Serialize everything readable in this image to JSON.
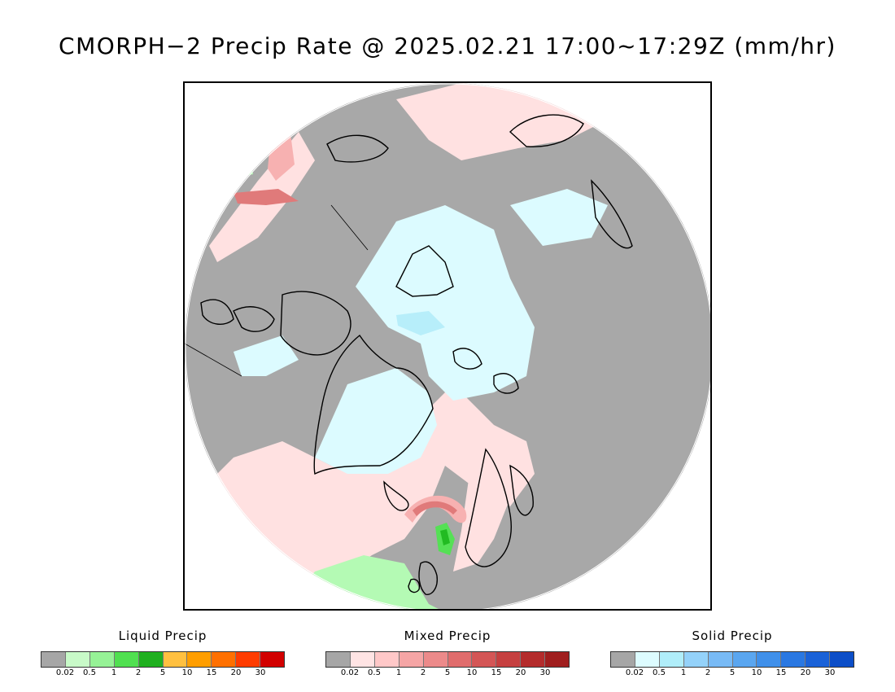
{
  "title": "CMORPH−2 Precip Rate @ 2025.02.21 17:00~17:29Z (mm/hr)",
  "map": {
    "colors": {
      "no_precip": "#a8a8a8",
      "mixed_light": "#ffe1e1",
      "mixed_mid": "#f7b1b1",
      "mixed_strong": "#e07a7a",
      "mixed_heavy": "#cc4848",
      "solid_light": "#dcfbff",
      "solid_mid": "#b7eefa",
      "liquid_light": "#b4fab4",
      "liquid_mid": "#55e055",
      "liquid_strong": "#22bb22",
      "coast": "#000000"
    }
  },
  "legends": [
    {
      "title": "Liquid Precip",
      "colors": [
        "#a6a6a6",
        "#c8fac8",
        "#96f296",
        "#50e050",
        "#1fb01f",
        "#ffc040",
        "#ff9e00",
        "#ff7000",
        "#ff3c00",
        "#d20000"
      ],
      "ticks": [
        "0.02",
        "0.5",
        "1",
        "2",
        "5",
        "10",
        "15",
        "20",
        "30"
      ]
    },
    {
      "title": "Mixed Precip",
      "colors": [
        "#a6a6a6",
        "#ffe4e4",
        "#ffc8c8",
        "#f5a5a5",
        "#ec8a8a",
        "#e06c6c",
        "#d45656",
        "#c64040",
        "#b42c2c",
        "#a01e1e"
      ],
      "ticks": [
        "0.02",
        "0.5",
        "1",
        "2",
        "5",
        "10",
        "15",
        "20",
        "30"
      ]
    },
    {
      "title": "Solid Precip",
      "colors": [
        "#a6a6a6",
        "#ddfcff",
        "#b0eefa",
        "#94d2fa",
        "#78baf5",
        "#5aa6f0",
        "#4090ea",
        "#2a78e2",
        "#1a62d8",
        "#0c4ec8"
      ],
      "ticks": [
        "0.02",
        "0.5",
        "1",
        "2",
        "5",
        "10",
        "15",
        "20",
        "30"
      ]
    }
  ]
}
